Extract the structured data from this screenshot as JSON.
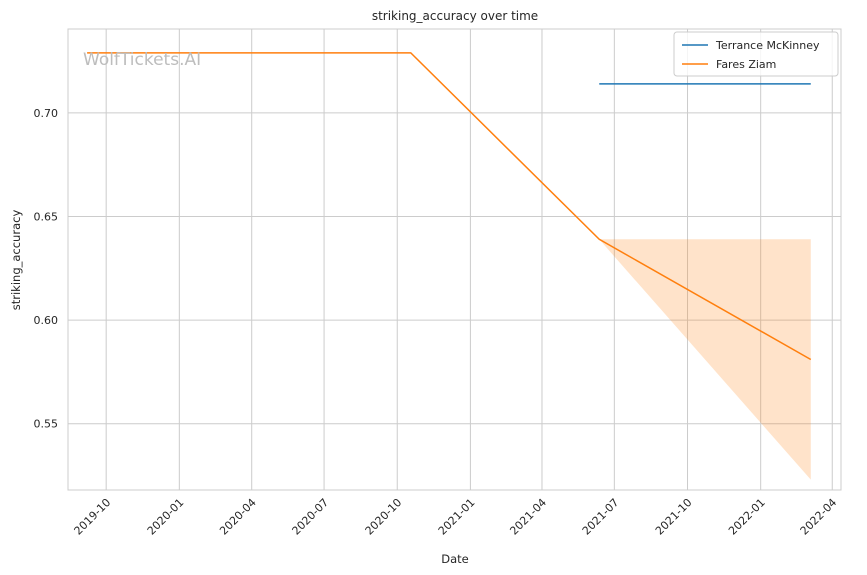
{
  "chart_data": {
    "type": "line",
    "title": "striking_accuracy over time",
    "xlabel": "Date",
    "ylabel": "striking_accuracy",
    "watermark": "WolfTickets.AI",
    "xlim": [
      "2019-08-14",
      "2022-04-12"
    ],
    "ylim": [
      0.518,
      0.7405
    ],
    "grid": true,
    "legend_position": "top-right",
    "x_ticks": [
      "2019-10",
      "2020-01",
      "2020-04",
      "2020-07",
      "2020-10",
      "2021-01",
      "2021-04",
      "2021-07",
      "2021-10",
      "2022-01",
      "2022-04"
    ],
    "y_ticks": [
      "0.55",
      "0.60",
      "0.65",
      "0.70"
    ],
    "series": [
      {
        "name": "Terrance McKinney",
        "color": "#1f77b4",
        "points": [
          {
            "x": "2021-06-12",
            "y": 0.714
          },
          {
            "x": "2022-03-05",
            "y": 0.714
          }
        ]
      },
      {
        "name": "Fares Ziam",
        "color": "#ff7f0e",
        "points": [
          {
            "x": "2019-09-07",
            "y": 0.729
          },
          {
            "x": "2020-10-18",
            "y": 0.729
          },
          {
            "x": "2021-06-12",
            "y": 0.639
          },
          {
            "x": "2022-03-05",
            "y": 0.581
          }
        ],
        "confidence_band": {
          "color": "#ff7f0e",
          "opacity": 0.22,
          "points": [
            {
              "x": "2021-06-12",
              "lower": 0.639,
              "upper": 0.639
            },
            {
              "x": "2022-03-05",
              "lower": 0.523,
              "upper": 0.639
            }
          ]
        }
      }
    ]
  }
}
